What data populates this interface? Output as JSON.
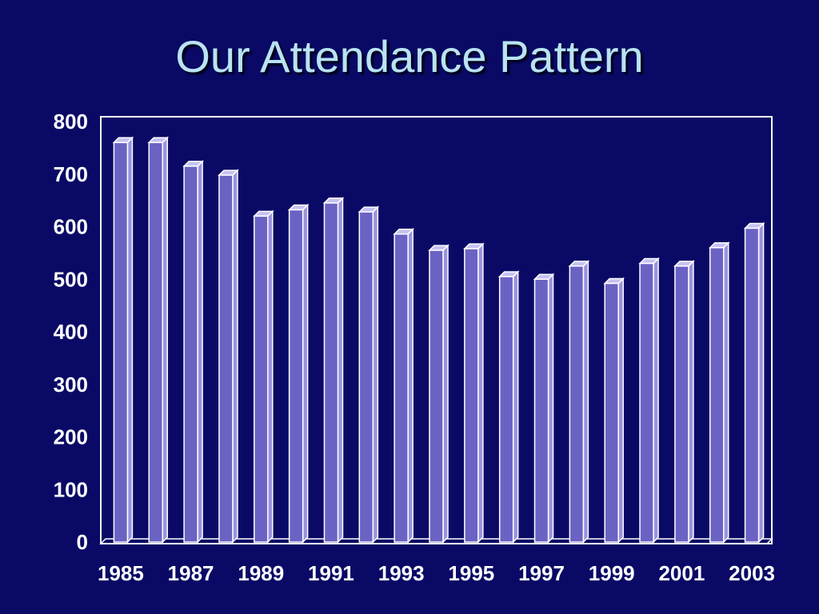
{
  "slide": {
    "title": "Our Attendance Pattern"
  },
  "colors": {
    "background": "#0a0a66",
    "bar_front": "#6b63c4",
    "bar_outline": "#ffffff",
    "title": "#b9e3f2",
    "axis": "#ffffff"
  },
  "chart_data": {
    "type": "bar",
    "title": "Our Attendance Pattern",
    "xlabel": "",
    "ylabel": "",
    "categories": [
      "1985",
      "1986",
      "1987",
      "1988",
      "1989",
      "1990",
      "1991",
      "1992",
      "1993",
      "1994",
      "1995",
      "1996",
      "1997",
      "1998",
      "1999",
      "2000",
      "2001",
      "2002",
      "2003"
    ],
    "x_tick_labels": [
      "1985",
      "1987",
      "1989",
      "1991",
      "1993",
      "1995",
      "1997",
      "1999",
      "2001",
      "2003"
    ],
    "y_ticks": [
      0,
      100,
      200,
      300,
      400,
      500,
      600,
      700,
      800
    ],
    "values": [
      760,
      760,
      715,
      698,
      620,
      632,
      645,
      628,
      586,
      555,
      558,
      505,
      500,
      525,
      492,
      530,
      525,
      560,
      597
    ],
    "ylim": [
      0,
      800
    ],
    "grid": false,
    "style": "3d-columns"
  }
}
